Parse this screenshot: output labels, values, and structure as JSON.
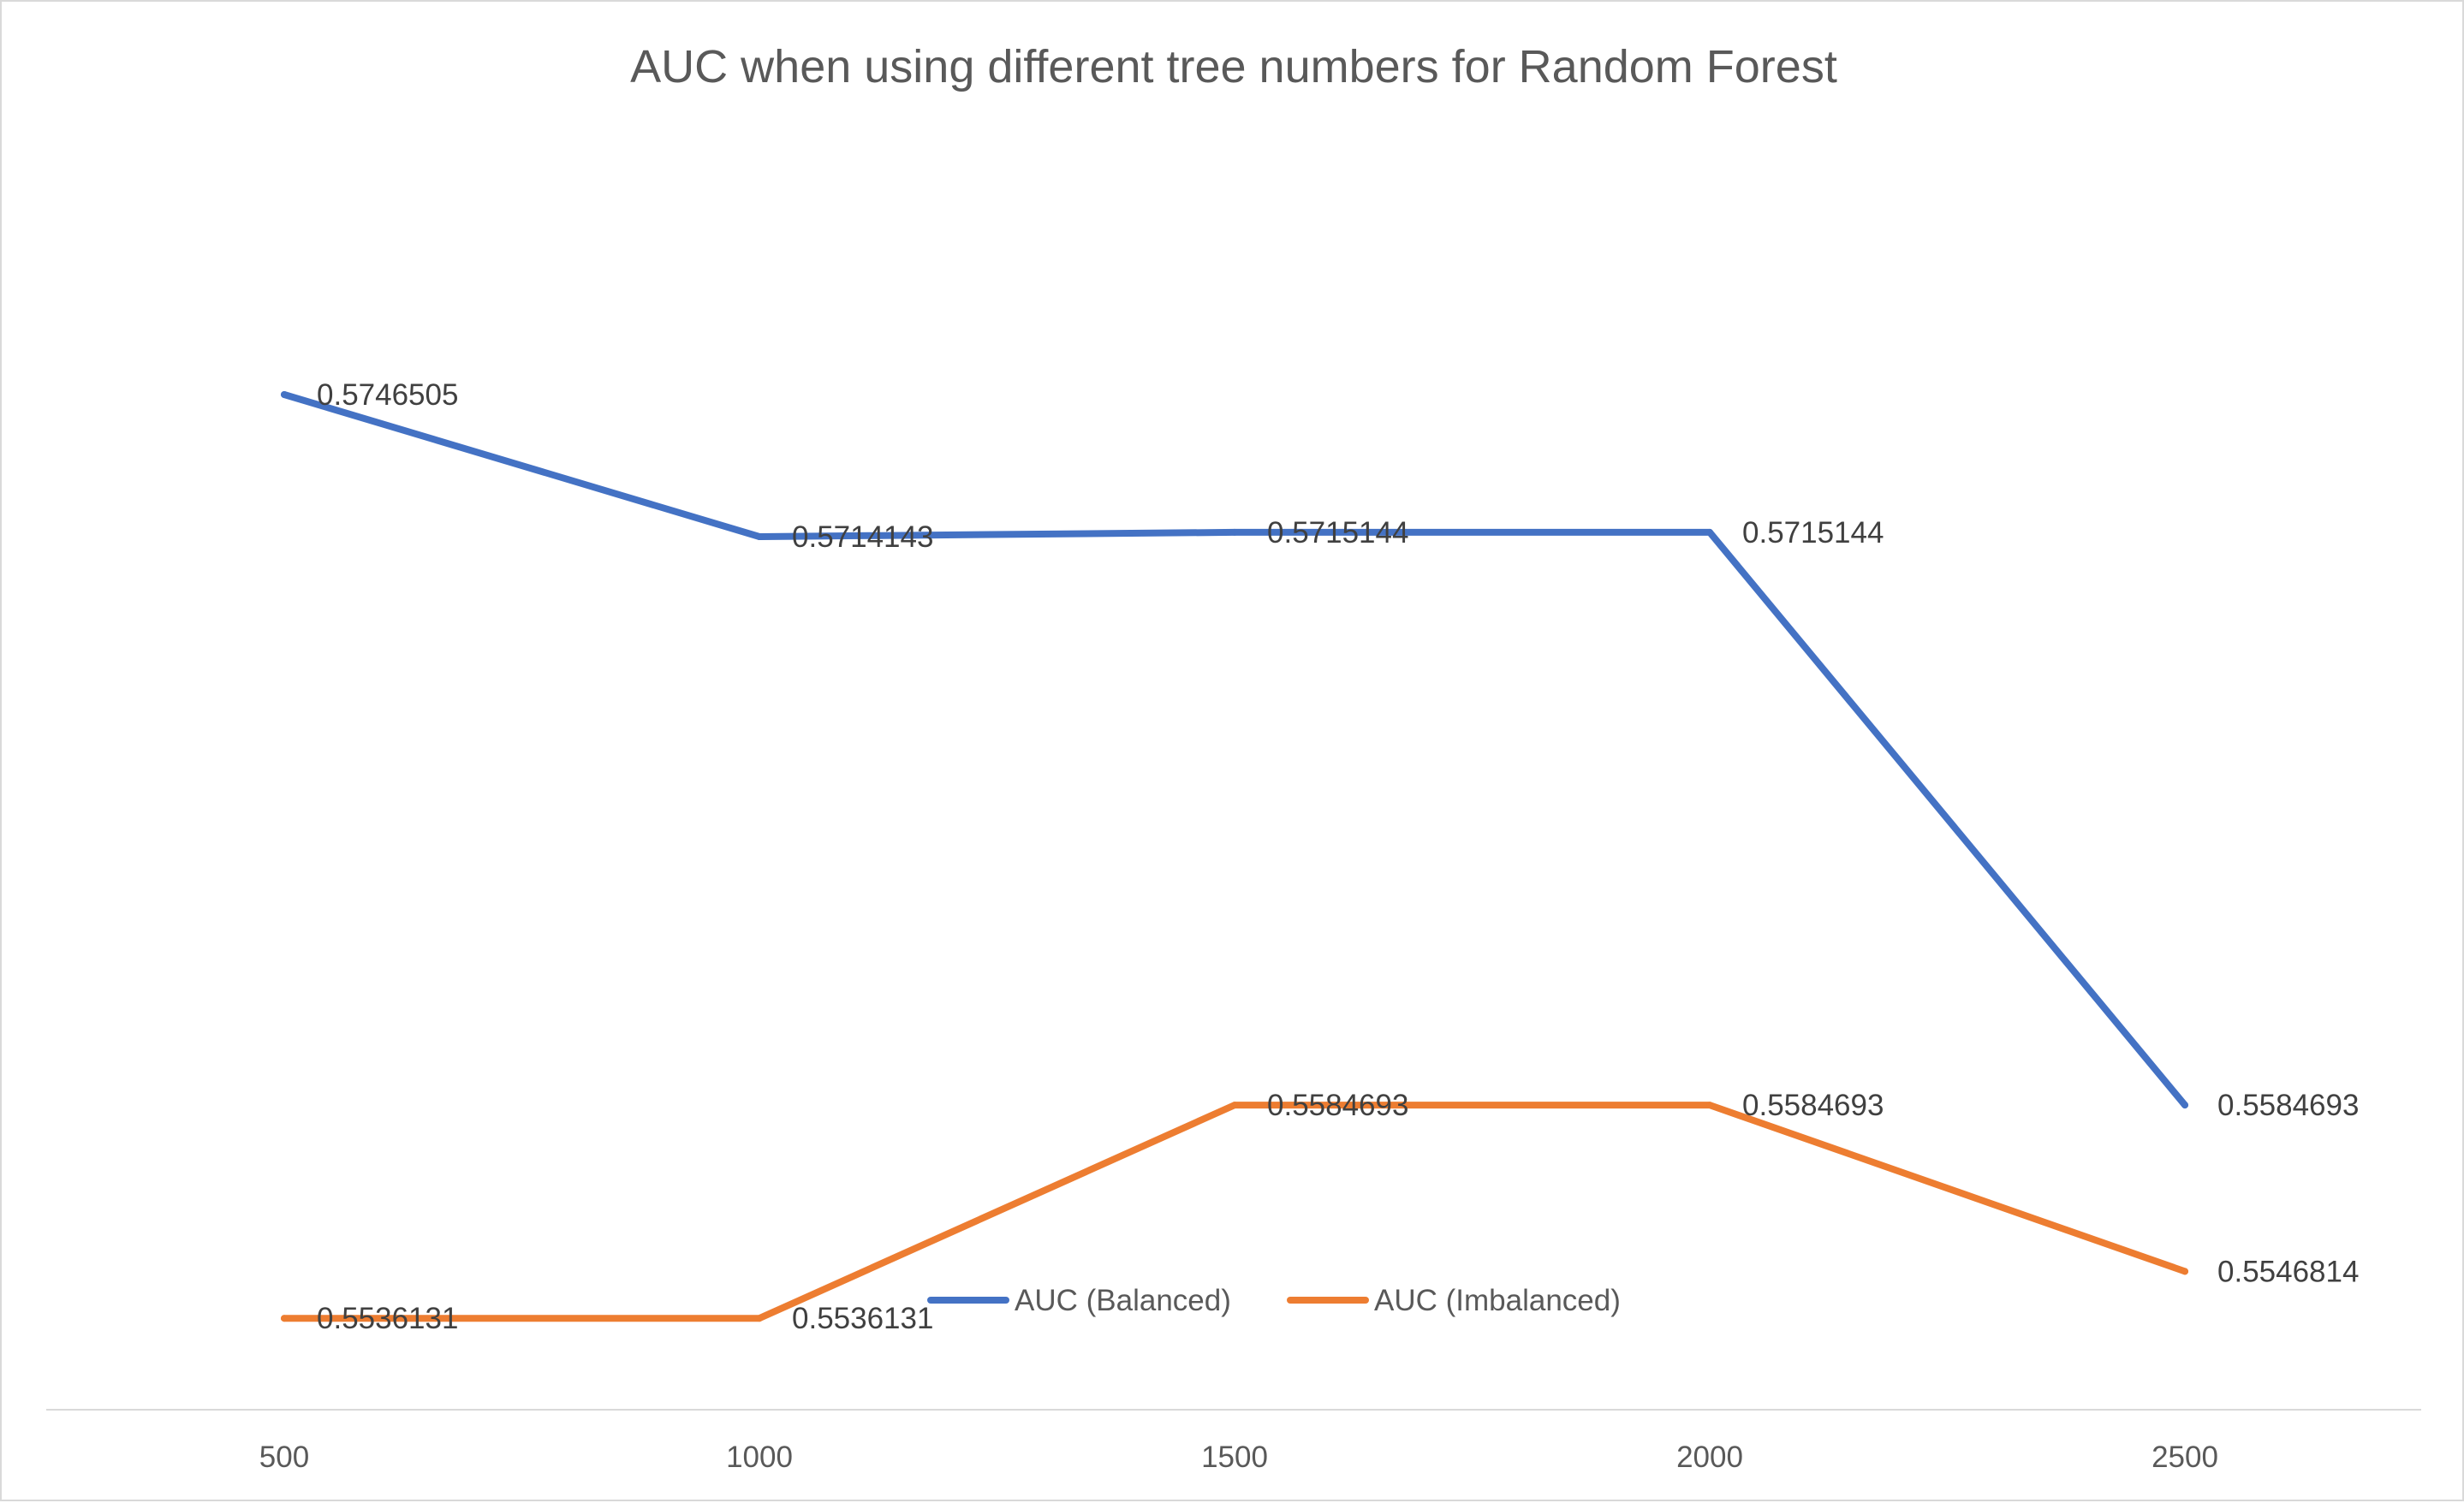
{
  "chart_data": {
    "type": "line",
    "title": "AUC when using different tree numbers for Random Forest",
    "xlabel": "",
    "ylabel": "",
    "categories": [
      "500",
      "1000",
      "1500",
      "2000",
      "2500"
    ],
    "series": [
      {
        "name": "AUC (Balanced)",
        "color": "#4472c4",
        "values": [
          0.5746505,
          0.5714143,
          0.5715144,
          0.5715144,
          0.5584693
        ],
        "labels": [
          "0.5746505",
          "0.5714143",
          "0.5715144",
          "0.5715144",
          "0.5584693"
        ]
      },
      {
        "name": "AUC (Imbalanced)",
        "color": "#ed7d31",
        "values": [
          0.5536131,
          0.5536131,
          0.5584693,
          0.5584693,
          0.5546814
        ],
        "labels": [
          "0.5536131",
          "0.5536131",
          "0.5584693",
          "0.5584693",
          "0.5546814"
        ]
      }
    ],
    "grid": false,
    "legend_position": "bottom",
    "axis_color": "#d9d9d9"
  }
}
